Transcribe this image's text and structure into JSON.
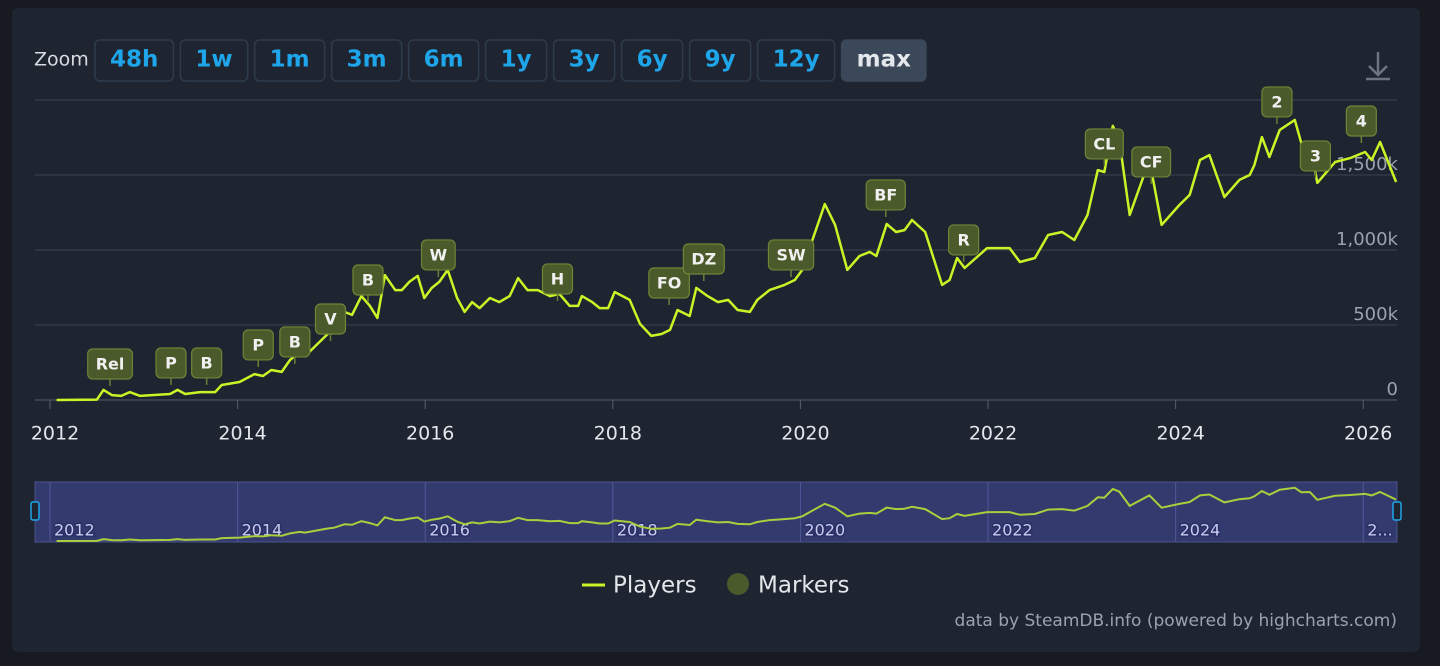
{
  "chart_data": {
    "type": "line",
    "zoom": {
      "label": "Zoom",
      "buttons": [
        "48h",
        "1w",
        "1m",
        "3m",
        "6m",
        "1y",
        "3y",
        "6y",
        "9y",
        "12y",
        "max"
      ],
      "active": 10
    },
    "x": [
      2012.07,
      2012.5,
      2012.57,
      2012.66,
      2012.76,
      2012.85,
      2012.96,
      2013.28,
      2013.36,
      2013.44,
      2013.6,
      2013.76,
      2013.83,
      2014.02,
      2014.18,
      2014.27,
      2014.36,
      2014.47,
      2014.56,
      2014.66,
      2014.72,
      2014.85,
      2014.96,
      2015.03,
      2015.14,
      2015.22,
      2015.32,
      2015.41,
      2015.49,
      2015.57,
      2015.68,
      2015.75,
      2015.83,
      2015.92,
      2015.99,
      2016.07,
      2016.15,
      2016.24,
      2016.34,
      2016.42,
      2016.5,
      2016.58,
      2016.69,
      2016.79,
      2016.9,
      2016.99,
      2017.09,
      2017.2,
      2017.33,
      2017.43,
      2017.54,
      2017.63,
      2017.67,
      2017.78,
      2017.86,
      2017.95,
      2018.02,
      2018.18,
      2018.29,
      2018.41,
      2018.52,
      2018.61,
      2018.69,
      2018.82,
      2018.89,
      2019.01,
      2019.12,
      2019.23,
      2019.33,
      2019.46,
      2019.54,
      2019.67,
      2019.83,
      2019.94,
      2020.02,
      2020.12,
      2020.26,
      2020.37,
      2020.5,
      2020.63,
      2020.74,
      2020.81,
      2020.92,
      2021.02,
      2021.11,
      2021.19,
      2021.33,
      2021.51,
      2021.59,
      2021.67,
      2021.75,
      2021.99,
      2022.23,
      2022.34,
      2022.5,
      2022.64,
      2022.79,
      2022.92,
      2023.06,
      2023.17,
      2023.24,
      2023.33,
      2023.4,
      2023.51,
      2023.72,
      2023.85,
      2024.04,
      2024.15,
      2024.26,
      2024.36,
      2024.52,
      2024.68,
      2024.79,
      2024.84,
      2024.92,
      2025.0,
      2025.11,
      2025.27,
      2025.34,
      2025.43,
      2025.51,
      2025.7,
      2025.86,
      2026.02,
      2026.09,
      2026.18,
      2026.35
    ],
    "series": [
      {
        "name": "Players",
        "color": "#c9f526",
        "values": [
          0,
          3000,
          67000,
          33000,
          27000,
          53000,
          27000,
          40000,
          67000,
          40000,
          53000,
          53000,
          100000,
          120000,
          173000,
          160000,
          200000,
          187000,
          267000,
          320000,
          293000,
          373000,
          440000,
          467000,
          587000,
          567000,
          693000,
          627000,
          547000,
          833000,
          733000,
          733000,
          787000,
          827000,
          680000,
          747000,
          787000,
          867000,
          680000,
          587000,
          653000,
          613000,
          680000,
          653000,
          693000,
          813000,
          733000,
          733000,
          693000,
          707000,
          627000,
          627000,
          693000,
          653000,
          613000,
          613000,
          720000,
          667000,
          507000,
          427000,
          440000,
          467000,
          600000,
          560000,
          747000,
          693000,
          653000,
          667000,
          600000,
          587000,
          667000,
          733000,
          767000,
          800000,
          867000,
          1053000,
          1307000,
          1167000,
          867000,
          960000,
          987000,
          960000,
          1173000,
          1120000,
          1133000,
          1200000,
          1120000,
          767000,
          800000,
          947000,
          880000,
          1013000,
          1013000,
          920000,
          947000,
          1100000,
          1120000,
          1067000,
          1233000,
          1533000,
          1520000,
          1827000,
          1733000,
          1233000,
          1600000,
          1167000,
          1300000,
          1367000,
          1600000,
          1633000,
          1353000,
          1467000,
          1500000,
          1567000,
          1753000,
          1620000,
          1800000,
          1867000,
          1713000,
          1720000,
          1447000,
          1587000,
          1613000,
          1653000,
          1600000,
          1720000,
          1453000
        ]
      }
    ],
    "markers": {
      "name": "Markers",
      "color": "#4b5a2a",
      "points": [
        {
          "label": "Rel",
          "x": 2012.64,
          "y": 240000
        },
        {
          "label": "P",
          "x": 2013.29,
          "y": 247000
        },
        {
          "label": "B",
          "x": 2013.67,
          "y": 247000
        },
        {
          "label": "P",
          "x": 2014.22,
          "y": 367000
        },
        {
          "label": "B",
          "x": 2014.61,
          "y": 387000
        },
        {
          "label": "V",
          "x": 2014.99,
          "y": 540000
        },
        {
          "label": "B",
          "x": 2015.39,
          "y": 800000
        },
        {
          "label": "W",
          "x": 2016.14,
          "y": 967000
        },
        {
          "label": "H",
          "x": 2017.41,
          "y": 807000
        },
        {
          "label": "FO",
          "x": 2018.6,
          "y": 780000
        },
        {
          "label": "DZ",
          "x": 2018.97,
          "y": 940000
        },
        {
          "label": "SW",
          "x": 2019.9,
          "y": 967000
        },
        {
          "label": "BF",
          "x": 2020.91,
          "y": 1367000
        },
        {
          "label": "R",
          "x": 2021.74,
          "y": 1067000
        },
        {
          "label": "CL",
          "x": 2023.24,
          "y": 1707000
        },
        {
          "label": "CF",
          "x": 2023.74,
          "y": 1587000
        },
        {
          "label": "2",
          "x": 2025.08,
          "y": 1987000
        },
        {
          "label": "3",
          "x": 2025.49,
          "y": 1627000
        },
        {
          "label": "4",
          "x": 2025.98,
          "y": 1860000
        }
      ]
    },
    "xlim": [
      2011.84,
      2026.36
    ],
    "xticks": [
      2012,
      2014,
      2016,
      2018,
      2020,
      2022,
      2024,
      2026
    ],
    "ylim": [
      0,
      2000000
    ],
    "yticks": [
      0,
      {
        "value": 500000,
        "label": "500k"
      },
      {
        "value": 1000000,
        "label": "1,000k"
      },
      {
        "value": 1500000,
        "label": "1,500k"
      }
    ],
    "grid": true,
    "navigator": {
      "xticks": [
        2012,
        2014,
        2016,
        2018,
        2020,
        2022,
        2024,
        {
          "value": 2026,
          "label": "2..."
        }
      ]
    },
    "credits": "data by SteamDB.info (powered by highcharts.com)"
  }
}
